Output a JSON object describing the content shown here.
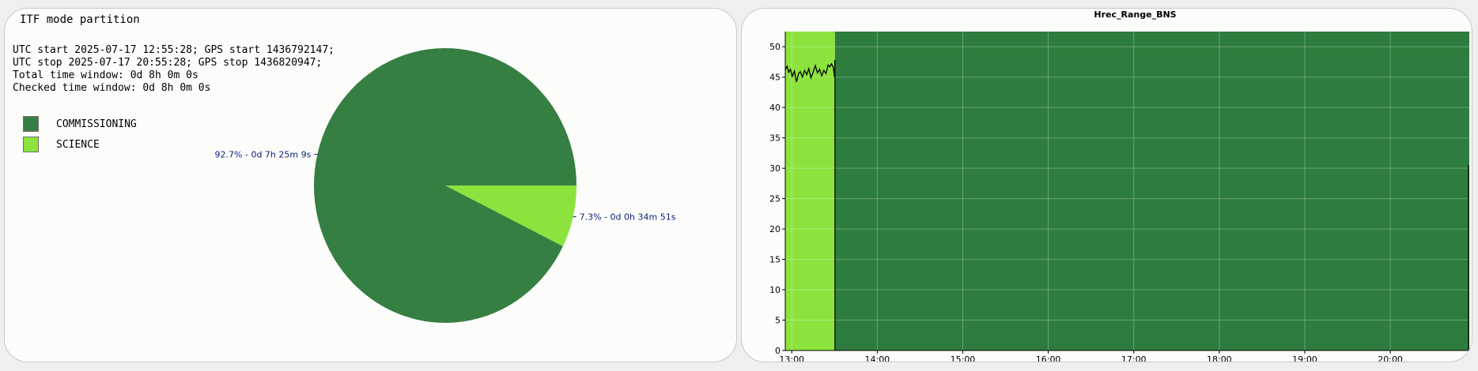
{
  "pie_panel": {
    "title": "ITF mode partition",
    "info_lines": [
      "UTC start 2025-07-17 12:55:28; GPS start 1436792147;",
      "UTC stop 2025-07-17 20:55:28; GPS stop 1436820947;",
      "Total time window: 0d 8h 0m 0s",
      "Checked time window: 0d 8h 0m 0s"
    ],
    "legend": [
      {
        "label": "COMMISSIONING",
        "color": "#367f42"
      },
      {
        "label": "SCIENCE",
        "color": "#8ce33d"
      }
    ]
  },
  "chart_data": [
    {
      "type": "pie",
      "slices": [
        {
          "name": "COMMISSIONING",
          "value": 92.7,
          "label": "92.7% - 0d 7h 25m 9s",
          "color": "#367f42"
        },
        {
          "name": "SCIENCE",
          "value": 7.3,
          "label": "7.3% - 0d 0h 34m 51s",
          "color": "#8ce33d"
        }
      ]
    },
    {
      "type": "line",
      "title": "Hrec_Range_BNS",
      "xlabel": "",
      "ylabel": "",
      "ylim": [
        0,
        52.5
      ],
      "yticks": [
        0,
        5,
        10,
        15,
        20,
        25,
        30,
        35,
        40,
        45,
        50
      ],
      "xticks": [
        "13:00",
        "14:00",
        "15:00",
        "16:00",
        "17:00",
        "18:00",
        "19:00",
        "20:00"
      ],
      "x_start_hour": 12.924,
      "x_end_hour": 20.924,
      "grid": true,
      "mode_bands": [
        {
          "name": "SCIENCE",
          "start_hour": 12.924,
          "end_hour": 13.505,
          "color": "#8ce33d"
        },
        {
          "name": "COMMISSIONING",
          "start_hour": 13.505,
          "end_hour": 20.924,
          "color": "#2e7d3e"
        }
      ],
      "series": [
        {
          "color": "#000000",
          "x_hours": [
            12.924,
            12.945,
            12.965,
            12.985,
            13.005,
            13.03,
            13.055,
            13.08,
            13.1,
            13.125,
            13.15,
            13.175,
            13.2,
            13.225,
            13.25,
            13.275,
            13.3,
            13.325,
            13.35,
            13.375,
            13.4,
            13.425,
            13.445,
            13.465,
            13.485,
            13.5,
            13.505
          ],
          "values": [
            46.2,
            46.8,
            45.8,
            46.3,
            45.1,
            46.0,
            44.2,
            45.6,
            45.9,
            45.0,
            46.1,
            45.4,
            46.4,
            44.9,
            45.8,
            46.9,
            45.7,
            46.3,
            45.2,
            46.1,
            45.6,
            47.0,
            46.7,
            47.2,
            46.6,
            45.0,
            47.8
          ]
        }
      ]
    }
  ]
}
